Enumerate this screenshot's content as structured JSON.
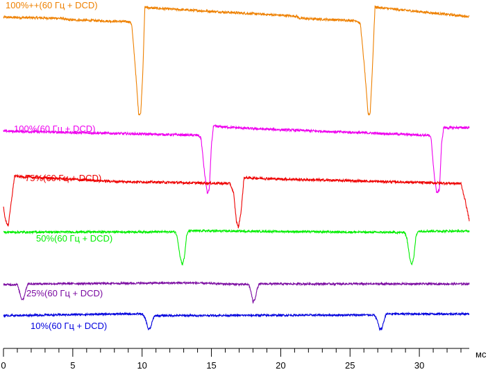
{
  "chart_data": {
    "type": "line",
    "title": "",
    "xlabel": "мс",
    "ylabel": "",
    "xlim": [
      0,
      33.6
    ],
    "ylim": [
      0,
      1
    ],
    "x_ticks": [
      0,
      5,
      10,
      15,
      20,
      25,
      30
    ],
    "x_tick_labels": [
      "0",
      "5",
      "10",
      "15",
      "20",
      "25",
      "30"
    ],
    "grid": false,
    "legend": "inline labels",
    "series": [
      {
        "name": "100%++(60 Гц + DCD)",
        "color": "#ee8000",
        "level": 0.957,
        "noise": 0.0035,
        "points": [
          [
            0,
            0.96
          ],
          [
            4.3,
            0.957
          ],
          [
            4.5,
            0.953
          ],
          [
            9.1,
            0.947
          ],
          [
            9.25,
            0.94
          ],
          [
            9.5,
            0.82
          ],
          [
            9.75,
            0.68
          ],
          [
            9.9,
            0.68
          ],
          [
            10.05,
            0.8
          ],
          [
            10.2,
            0.99
          ],
          [
            10.6,
            0.987
          ],
          [
            21.2,
            0.963
          ],
          [
            21.3,
            0.957
          ],
          [
            25.5,
            0.95
          ],
          [
            25.75,
            0.94
          ],
          [
            26.05,
            0.81
          ],
          [
            26.3,
            0.68
          ],
          [
            26.45,
            0.68
          ],
          [
            26.6,
            0.8
          ],
          [
            26.8,
            0.99
          ],
          [
            27.3,
            0.987
          ],
          [
            33.6,
            0.962
          ]
        ]
      },
      {
        "name": "100%(60 Гц + DCD)",
        "color": "#ee00ee",
        "level": 0.625,
        "noise": 0.0035,
        "points": [
          [
            0,
            0.63
          ],
          [
            9.5,
            0.622
          ],
          [
            14.05,
            0.618
          ],
          [
            14.25,
            0.61
          ],
          [
            14.5,
            0.51
          ],
          [
            14.7,
            0.45
          ],
          [
            14.85,
            0.46
          ],
          [
            15.0,
            0.59
          ],
          [
            15.15,
            0.644
          ],
          [
            18,
            0.637
          ],
          [
            30.65,
            0.618
          ],
          [
            30.85,
            0.61
          ],
          [
            31.05,
            0.51
          ],
          [
            31.25,
            0.45
          ],
          [
            31.45,
            0.46
          ],
          [
            31.6,
            0.59
          ],
          [
            31.75,
            0.64
          ],
          [
            33.6,
            0.64
          ]
        ]
      },
      {
        "name": "75%(60 Гц + DCD)",
        "color": "#ee0000",
        "level": 0.485,
        "noise": 0.0035,
        "points": [
          [
            0,
            0.41
          ],
          [
            0.15,
            0.37
          ],
          [
            0.35,
            0.356
          ],
          [
            0.55,
            0.42
          ],
          [
            0.8,
            0.5
          ],
          [
            1.2,
            0.498
          ],
          [
            8,
            0.484
          ],
          [
            16.35,
            0.478
          ],
          [
            16.6,
            0.45
          ],
          [
            16.8,
            0.37
          ],
          [
            16.95,
            0.35
          ],
          [
            17.15,
            0.4
          ],
          [
            17.35,
            0.495
          ],
          [
            20,
            0.491
          ],
          [
            33,
            0.478
          ],
          [
            33.3,
            0.43
          ],
          [
            33.6,
            0.372
          ]
        ]
      },
      {
        "name": "50%(60 Гц + DCD)",
        "color": "#00ee00",
        "level": 0.338,
        "noise": 0.003,
        "points": [
          [
            0,
            0.337
          ],
          [
            12.4,
            0.338
          ],
          [
            12.55,
            0.32
          ],
          [
            12.75,
            0.264
          ],
          [
            12.9,
            0.243
          ],
          [
            13.05,
            0.263
          ],
          [
            13.2,
            0.324
          ],
          [
            13.35,
            0.341
          ],
          [
            28.95,
            0.336
          ],
          [
            29.1,
            0.32
          ],
          [
            29.3,
            0.264
          ],
          [
            29.45,
            0.243
          ],
          [
            29.6,
            0.263
          ],
          [
            29.75,
            0.324
          ],
          [
            29.9,
            0.34
          ],
          [
            33.6,
            0.34
          ]
        ]
      },
      {
        "name": "25%(60 Гц + DCD)",
        "color": "#7a0aa0",
        "level": 0.185,
        "noise": 0.0028,
        "points": [
          [
            0,
            0.185
          ],
          [
            1.0,
            0.185
          ],
          [
            1.15,
            0.165
          ],
          [
            1.3,
            0.143
          ],
          [
            1.45,
            0.144
          ],
          [
            1.6,
            0.168
          ],
          [
            1.75,
            0.187
          ],
          [
            13.5,
            0.19
          ],
          [
            17.7,
            0.185
          ],
          [
            17.85,
            0.165
          ],
          [
            18.0,
            0.134
          ],
          [
            18.15,
            0.144
          ],
          [
            18.3,
            0.172
          ],
          [
            18.45,
            0.187
          ],
          [
            33.6,
            0.187
          ]
        ]
      },
      {
        "name": "10%(60 Гц + DCD)",
        "color": "#0000dd",
        "level": 0.097,
        "noise": 0.0028,
        "points": [
          [
            0,
            0.095
          ],
          [
            8.5,
            0.1
          ],
          [
            10.0,
            0.1
          ],
          [
            10.25,
            0.085
          ],
          [
            10.45,
            0.055
          ],
          [
            10.6,
            0.058
          ],
          [
            10.75,
            0.08
          ],
          [
            10.9,
            0.095
          ],
          [
            26.75,
            0.097
          ],
          [
            26.95,
            0.082
          ],
          [
            27.15,
            0.055
          ],
          [
            27.3,
            0.058
          ],
          [
            27.45,
            0.08
          ],
          [
            27.6,
            0.1
          ],
          [
            33.6,
            0.1
          ]
        ]
      }
    ]
  }
}
